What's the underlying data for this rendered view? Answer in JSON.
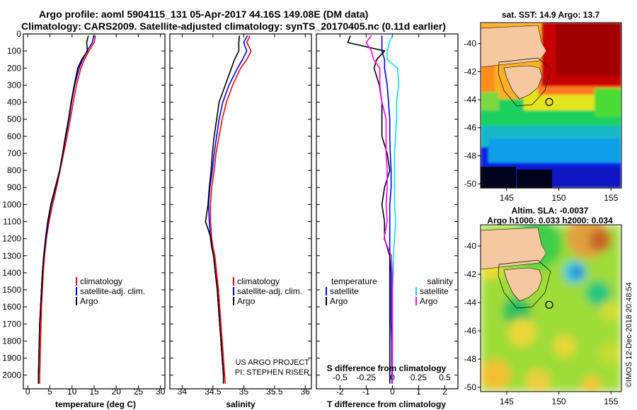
{
  "title": {
    "line1": "Argo profile: aoml 5904115_131 05-Apr-2017 44.16S 149.08E (DM data)",
    "line2": "Climatology: CARS2009. Satellite-adjusted climatology: synTS_20170405.nc (0.11d earlier)"
  },
  "colors": {
    "climatology": "#ff0000",
    "satellite": "#0000ff",
    "argo": "#000000",
    "satellite_salinity": "#00e5e5",
    "argo_salinity": "#ff00ff"
  },
  "credits": {
    "project": "US ARGO PROJECT",
    "pi": "PI: STEPHEN RISER",
    "stamp": "©IMOS 12-Dec-2018 20:48:54"
  },
  "chart_data": [
    {
      "type": "line",
      "panel": "temperature",
      "xlabel": "temperature (deg C)",
      "ylabel": "",
      "xlim": [
        -1,
        31
      ],
      "ylim": [
        2080,
        0
      ],
      "xticks": [
        0,
        5,
        10,
        15,
        20,
        25,
        30
      ],
      "yticks": [
        0,
        100,
        200,
        300,
        400,
        500,
        600,
        700,
        800,
        900,
        1000,
        1100,
        1200,
        1300,
        1400,
        1500,
        1600,
        1700,
        1800,
        1900,
        2000
      ],
      "legend": [
        "climatology",
        "satellite-adj. clim.",
        "Argo"
      ],
      "depth": [
        10,
        50,
        100,
        150,
        200,
        300,
        400,
        500,
        600,
        700,
        800,
        900,
        1000,
        1100,
        1200,
        1300,
        1400,
        1500,
        1600,
        1700,
        1800,
        1900,
        2000,
        2050
      ],
      "series": [
        {
          "name": "climatology",
          "values": [
            15.3,
            15.0,
            13.8,
            12.8,
            12.0,
            11.0,
            10.3,
            9.6,
            8.9,
            8.1,
            7.3,
            6.5,
            5.6,
            4.8,
            4.2,
            3.8,
            3.5,
            3.3,
            3.1,
            3.0,
            2.9,
            2.8,
            2.7,
            2.7
          ]
        },
        {
          "name": "satellite-adj. clim.",
          "values": [
            14.9,
            14.6,
            13.4,
            12.4,
            11.6,
            10.6,
            9.9,
            9.3,
            8.6,
            7.9,
            7.2,
            6.3,
            5.3,
            4.6,
            4.1,
            3.6,
            3.3,
            3.1,
            2.9,
            2.7,
            2.6,
            2.5,
            2.4,
            2.4
          ]
        },
        {
          "name": "Argo",
          "values": [
            13.7,
            13.3,
            13.5,
            12.2,
            11.3,
            10.5,
            9.8,
            9.2,
            8.5,
            7.9,
            7.2,
            6.2,
            5.2,
            4.5,
            4.0,
            3.6,
            3.3,
            3.1,
            2.9,
            2.7,
            2.6,
            2.5,
            2.4,
            2.4
          ]
        }
      ]
    },
    {
      "type": "line",
      "panel": "salinity",
      "xlabel": "salinity",
      "ylabel": "",
      "xlim": [
        33.8,
        36.1
      ],
      "ylim": [
        2080,
        0
      ],
      "xticks": [
        34,
        34.5,
        35,
        35.5,
        36
      ],
      "legend": [
        "climatology",
        "satellite-adj. clim.",
        "Argo"
      ],
      "depth": [
        10,
        50,
        100,
        150,
        200,
        300,
        400,
        500,
        600,
        700,
        800,
        900,
        1000,
        1100,
        1200,
        1250,
        1300,
        1400,
        1500,
        1600,
        1700,
        1800,
        1900,
        2000,
        2050
      ],
      "series": [
        {
          "name": "climatology",
          "values": [
            35.1,
            35.05,
            35.12,
            35.05,
            34.95,
            34.82,
            34.72,
            34.65,
            34.6,
            34.55,
            34.52,
            34.48,
            34.46,
            34.46,
            34.48,
            34.5,
            34.53,
            34.56,
            34.59,
            34.61,
            34.63,
            34.65,
            34.67,
            34.69,
            34.7
          ]
        },
        {
          "name": "satellite-adj. clim.",
          "values": [
            35.06,
            35.0,
            35.05,
            34.98,
            34.9,
            34.76,
            34.66,
            34.6,
            34.56,
            34.52,
            34.49,
            34.45,
            34.43,
            34.44,
            34.46,
            34.48,
            34.51,
            34.54,
            34.57,
            34.59,
            34.61,
            34.63,
            34.65,
            34.67,
            34.67
          ]
        },
        {
          "name": "Argo",
          "values": [
            34.93,
            34.92,
            34.92,
            34.85,
            34.8,
            34.7,
            34.6,
            34.56,
            34.52,
            34.49,
            34.47,
            34.44,
            34.42,
            34.38,
            34.47,
            34.48,
            34.51,
            34.54,
            34.57,
            34.59,
            34.61,
            34.63,
            34.65,
            34.67,
            34.67
          ]
        }
      ]
    },
    {
      "type": "line",
      "panel": "differences",
      "xlabel": "T difference from climatology",
      "xlabel_top": "S difference from climatology",
      "ylabel": "",
      "xlim": [
        -2.9,
        2.5
      ],
      "ylim": [
        2080,
        0
      ],
      "xticks": [
        -2,
        -1,
        0,
        1,
        2
      ],
      "xticks_top": [
        "-0.5",
        "-0.25",
        "0",
        "0.25",
        "0.5"
      ],
      "legend_temperature_title": "temperature",
      "legend_salinity_title": "salinity",
      "legend": [
        "satellite",
        "Argo",
        "satellite",
        "Argo"
      ],
      "depth": [
        10,
        50,
        100,
        150,
        200,
        300,
        400,
        500,
        600,
        700,
        800,
        900,
        1000,
        1100,
        1200,
        1300,
        1400,
        1500,
        1600,
        1700,
        1800,
        1900,
        2000,
        2050
      ],
      "series": [
        {
          "name": "satellite",
          "variable": "temperature",
          "values": [
            -0.4,
            -0.4,
            -0.4,
            -0.3,
            -0.3,
            -0.2,
            -0.15,
            -0.1,
            -0.1,
            -0.08,
            -0.05,
            -0.05,
            -0.1,
            -0.1,
            -0.1,
            -0.1,
            -0.05,
            -0.05,
            -0.05,
            -0.05,
            -0.03,
            -0.03,
            -0.02,
            -0.02
          ]
        },
        {
          "name": "Argo",
          "variable": "temperature",
          "values": [
            -1.6,
            -1.7,
            -0.3,
            -0.6,
            -0.7,
            -0.5,
            -0.4,
            -0.4,
            -0.4,
            -0.2,
            -0.1,
            -0.3,
            -0.4,
            -0.3,
            -0.3,
            -0.1,
            -0.1,
            -0.1,
            -0.1,
            -0.1,
            -0.1,
            -0.1,
            -0.1,
            -0.1
          ]
        },
        {
          "name": "satellite",
          "variable": "salinity",
          "values": [
            0.0,
            -0.03,
            -0.05,
            -0.05,
            0.05,
            0.06,
            0.04,
            0.04,
            0.03,
            0.02,
            0.02,
            0.02,
            0.02,
            0.03,
            0.02,
            0.01,
            0.01,
            0.0,
            0.0,
            0.0,
            0.0,
            0.0,
            0.0,
            0.0
          ]
        },
        {
          "name": "Argo",
          "variable": "salinity",
          "values": [
            -0.2,
            -0.25,
            -0.2,
            -0.18,
            -0.12,
            -0.12,
            -0.1,
            -0.06,
            -0.06,
            -0.06,
            -0.05,
            -0.05,
            -0.06,
            -0.05,
            -0.08,
            -0.01,
            0.0,
            0.0,
            0.0,
            0.0,
            0.0,
            0.0,
            0.0,
            0.0
          ]
        }
      ]
    },
    {
      "type": "heatmap",
      "panel": "sst-map",
      "title": "sat. SST: 14.9  Argo: 13.7",
      "xlim": [
        142.5,
        156
      ],
      "ylim": [
        -50.3,
        -38.5
      ],
      "xticks": [
        145,
        150,
        155
      ],
      "yticks": [
        -40,
        -42,
        -44,
        -46,
        -48,
        -50
      ],
      "profile_location": {
        "lon": 149.08,
        "lat": -44.16
      }
    },
    {
      "type": "heatmap",
      "panel": "sla-map",
      "title_line1": "Altim. SLA: -0.0037",
      "title_line2": "Argo h1000: 0.033 h2000: 0.034",
      "xlim": [
        142.5,
        156
      ],
      "ylim": [
        -50.3,
        -38.5
      ],
      "xticks": [
        145,
        150,
        155
      ],
      "yticks": [
        -40,
        -42,
        -44,
        -46,
        -48,
        -50
      ],
      "profile_location": {
        "lon": 149.08,
        "lat": -44.16
      }
    }
  ]
}
